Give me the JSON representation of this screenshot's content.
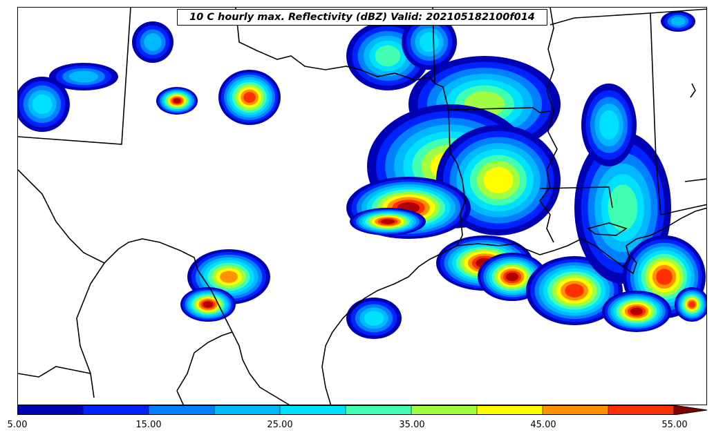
{
  "title": "10 C hourly max. Reflectivity (dBZ) Valid: 202105182100f014",
  "colorbar": {
    "colors": [
      "#0000b4",
      "#0022ff",
      "#0080ff",
      "#00b8ff",
      "#00e0ff",
      "#40ffb0",
      "#a0ff40",
      "#ffff00",
      "#ff9000",
      "#ff3000",
      "#b00000",
      "#800000"
    ],
    "tick_labels": [
      "5.00",
      "15.00",
      "25.00",
      "35.00",
      "45.00",
      "55.00"
    ]
  }
}
